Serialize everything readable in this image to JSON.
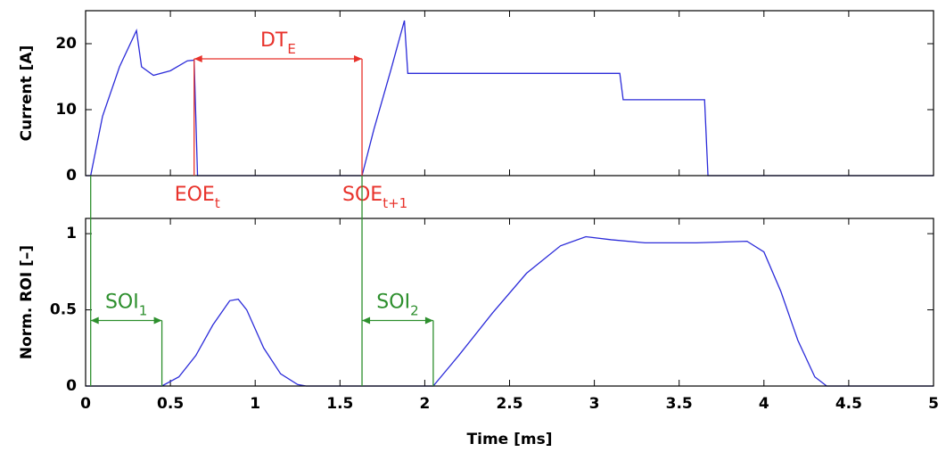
{
  "chart_data": [
    {
      "type": "line",
      "ylabel": "Current [A]",
      "color": "#2b2bd9",
      "x": [
        0,
        0.03,
        0.1,
        0.2,
        0.3,
        0.33,
        0.4,
        0.5,
        0.6,
        0.64,
        0.66,
        1.63,
        1.7,
        1.8,
        1.88,
        1.9,
        3.15,
        3.17,
        3.65,
        3.67,
        5
      ],
      "values": [
        0,
        0,
        9,
        16.5,
        22,
        16.5,
        15.2,
        15.9,
        17.4,
        17.5,
        0,
        0,
        7,
        16,
        23.5,
        15.5,
        15.5,
        11.5,
        11.5,
        0,
        0
      ],
      "xlim": [
        0,
        5
      ],
      "ylim": [
        0,
        25
      ],
      "yticks": [
        0,
        10,
        20
      ],
      "annotations": [
        {
          "text": "DT",
          "sub": "E",
          "x": [
            0.64,
            1.63
          ],
          "y": 17.7,
          "color": "#e8322b"
        },
        {
          "text": "EOE",
          "sub": "t",
          "x": 0.64,
          "color": "#e8322b"
        },
        {
          "text": "SOE",
          "sub": "t+1",
          "x": 1.63,
          "color": "#e8322b"
        }
      ]
    },
    {
      "type": "line",
      "ylabel": "Norm. ROI [–]",
      "xlabel": "Time [ms]",
      "color": "#2b2bd9",
      "x": [
        0,
        0.45,
        0.55,
        0.65,
        0.75,
        0.85,
        0.9,
        0.95,
        1.05,
        1.15,
        1.25,
        1.3,
        2.05,
        2.2,
        2.4,
        2.6,
        2.8,
        2.95,
        3.1,
        3.3,
        3.6,
        3.9,
        4.0,
        4.1,
        4.2,
        4.3,
        4.37,
        5
      ],
      "values": [
        0,
        0,
        0.06,
        0.2,
        0.4,
        0.56,
        0.57,
        0.5,
        0.25,
        0.08,
        0.01,
        0,
        0,
        0.2,
        0.48,
        0.74,
        0.92,
        0.98,
        0.96,
        0.94,
        0.94,
        0.95,
        0.88,
        0.62,
        0.3,
        0.06,
        0,
        0
      ],
      "xlim": [
        0,
        5
      ],
      "ylim": [
        0,
        1.1
      ],
      "yticks": [
        0,
        0.5,
        1
      ],
      "xticks": [
        0,
        0.5,
        1,
        1.5,
        2,
        2.5,
        3,
        3.5,
        4,
        4.5,
        5
      ],
      "annotations": [
        {
          "text": "SOI",
          "sub": "1",
          "x": [
            0.03,
            0.45
          ],
          "y": 0.43,
          "color": "#2d8f2d"
        },
        {
          "text": "SOI",
          "sub": "2",
          "x": [
            1.63,
            2.05
          ],
          "y": 0.43,
          "color": "#2d8f2d"
        }
      ]
    }
  ]
}
